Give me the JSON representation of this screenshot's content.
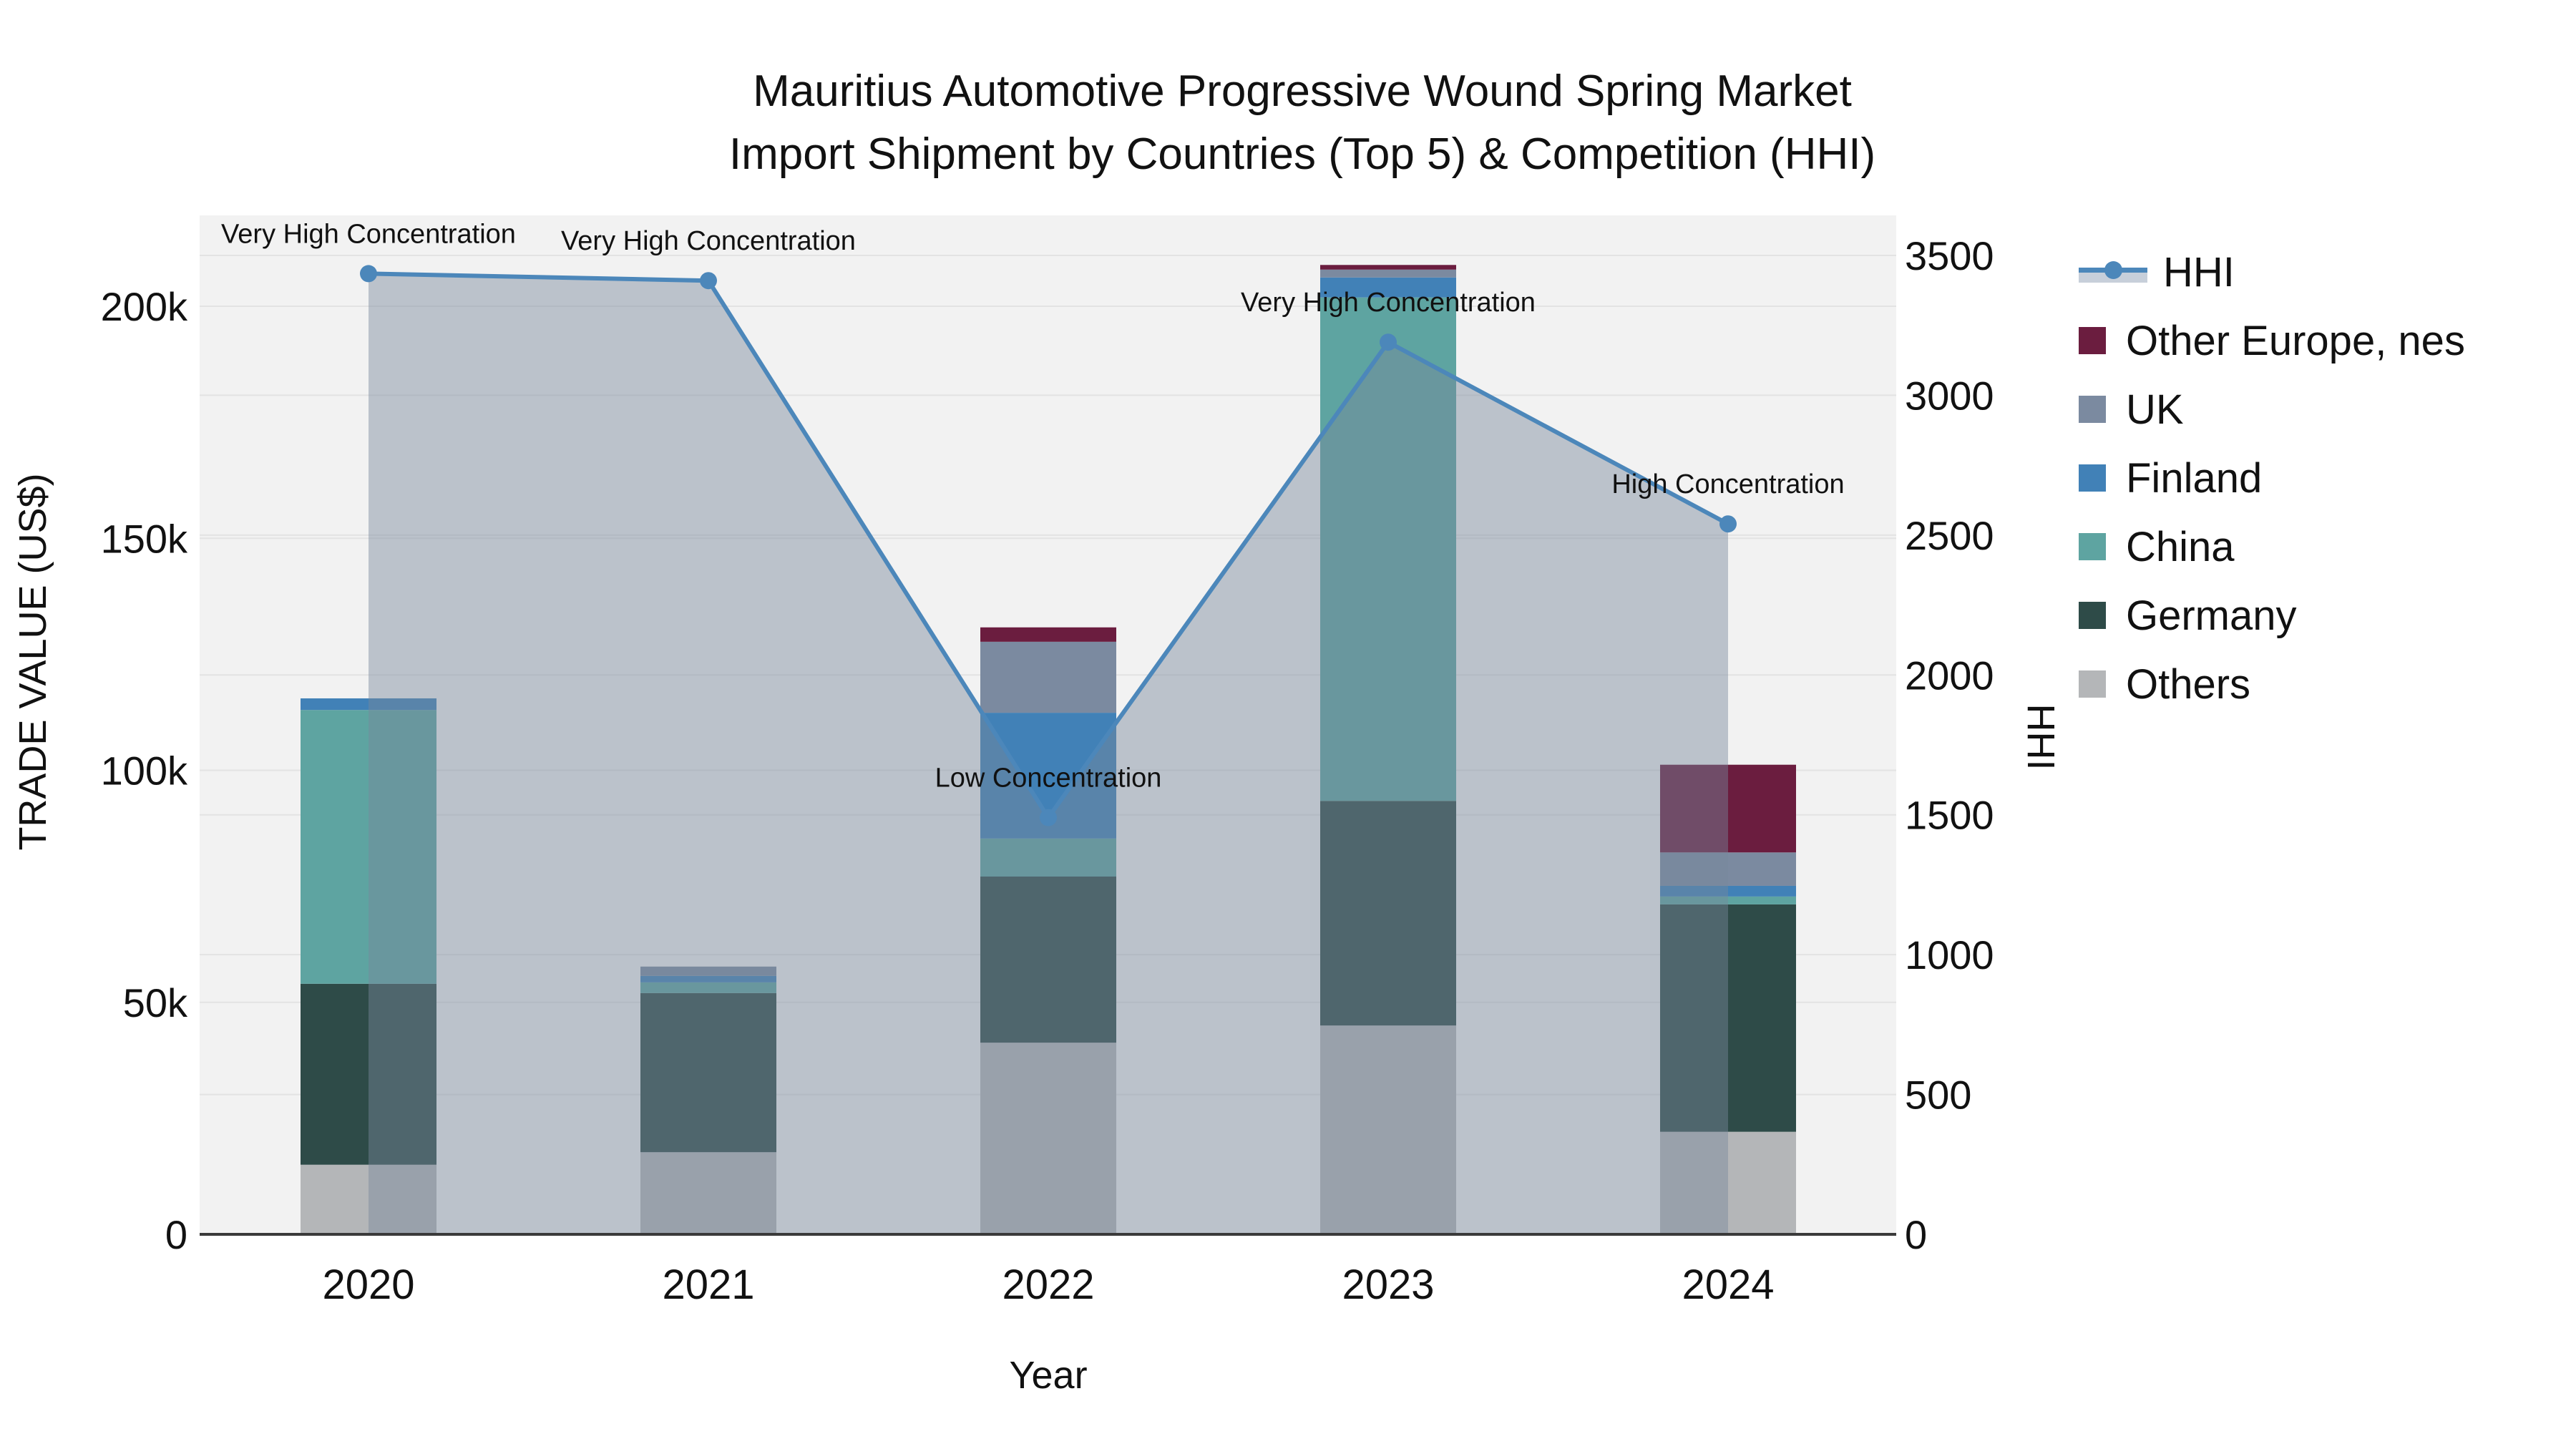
{
  "page": {
    "title_line1": "Mauritius Automotive Progressive Wound Spring Market",
    "title_line2": "Import Shipment by Countries (Top 5) & Competition (HHI)"
  },
  "chart_data": {
    "type": "bar",
    "subtype": "stacked-bars-with-line-area-overlay",
    "title": "Mauritius Automotive Progressive Wound Spring Market Import Shipment by Countries (Top 5) & Competition (HHI)",
    "xlabel": "Year",
    "ylabel_left": "TRADE VALUE (US$)",
    "ylabel_right": "HHI",
    "categories": [
      "2020",
      "2021",
      "2022",
      "2023",
      "2024"
    ],
    "unit_left": "thousand US$",
    "bar_series_bottom_to_top": [
      {
        "name": "Others",
        "color": "#b4b6b8",
        "values": [
          15.0,
          17.7,
          41.3,
          45.0,
          22.1
        ]
      },
      {
        "name": "Germany",
        "color": "#2e4b48",
        "values": [
          39.0,
          34.3,
          35.8,
          48.4,
          49.0
        ]
      },
      {
        "name": "China",
        "color": "#5ea4a1",
        "values": [
          59.0,
          2.3,
          8.2,
          108.5,
          1.7
        ]
      },
      {
        "name": "Finland",
        "color": "#4181b7",
        "values": [
          2.5,
          1.4,
          27.1,
          4.3,
          2.3
        ]
      },
      {
        "name": "UK",
        "color": "#7b8aa0",
        "values": [
          0,
          2.0,
          15.3,
          1.7,
          7.2
        ]
      },
      {
        "name": "Other Europe, nes",
        "color": "#6b1d3f",
        "values": [
          0,
          0,
          3.1,
          1.0,
          18.9
        ]
      }
    ],
    "line_series": {
      "name": "HHI",
      "color": "#4c87ba",
      "area_color": "rgba(120,135,155,0.45)",
      "legend_band_color": "#c7cfda",
      "values": [
        3435,
        3410,
        1490,
        3190,
        2540
      ]
    },
    "annotations": [
      {
        "category": "2020",
        "text": "Very High Concentration"
      },
      {
        "category": "2021",
        "text": "Very High Concentration"
      },
      {
        "category": "2022",
        "text": "Low Concentration"
      },
      {
        "category": "2023",
        "text": "Very High Concentration"
      },
      {
        "category": "2024",
        "text": "High Concentration"
      }
    ],
    "legend_order_top_to_bottom": [
      "HHI",
      "Other Europe, nes",
      "UK",
      "Finland",
      "China",
      "Germany",
      "Others"
    ],
    "axes": {
      "left": {
        "min": 0,
        "max": 219,
        "ticks": [
          {
            "v": 0,
            "label": "0"
          },
          {
            "v": 50,
            "label": "50k"
          },
          {
            "v": 100,
            "label": "100k"
          },
          {
            "v": 150,
            "label": "150k"
          },
          {
            "v": 200,
            "label": "200k"
          }
        ]
      },
      "right": {
        "min": 0,
        "max": 3640,
        "ticks": [
          {
            "v": 0,
            "label": "0"
          },
          {
            "v": 500,
            "label": "500"
          },
          {
            "v": 1000,
            "label": "1000"
          },
          {
            "v": 1500,
            "label": "1500"
          },
          {
            "v": 2000,
            "label": "2000"
          },
          {
            "v": 2500,
            "label": "2500"
          },
          {
            "v": 3000,
            "label": "3000"
          },
          {
            "v": 3500,
            "label": "3500"
          }
        ]
      },
      "grid": true,
      "plot_bg": "#f2f2f2",
      "grid_color": "#e3e3e3",
      "axisline_color": "#3a3a3a",
      "legend_position": "right"
    }
  }
}
